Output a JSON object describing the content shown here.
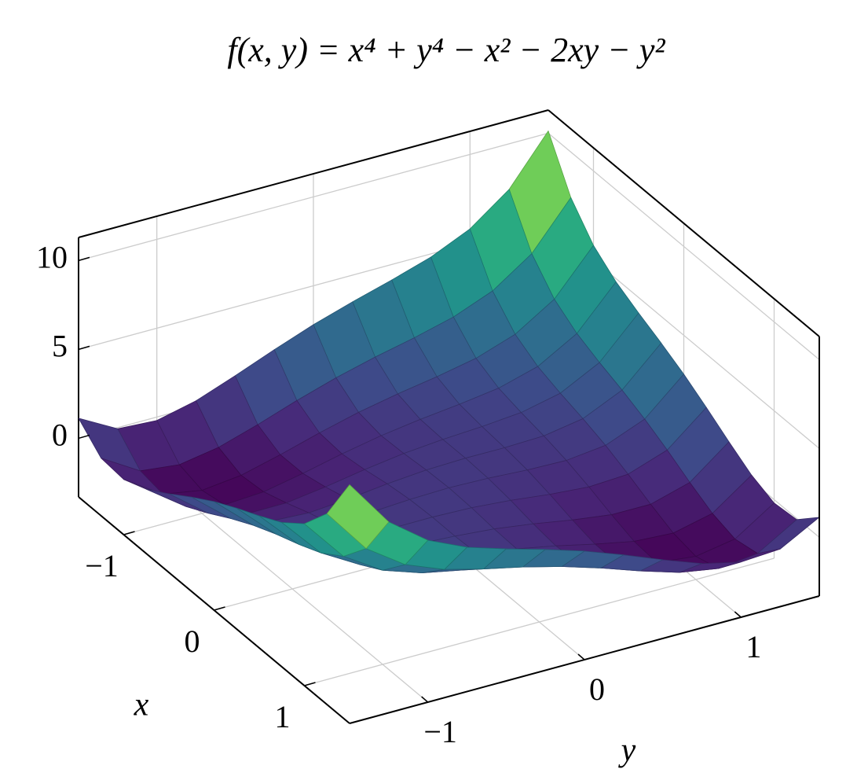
{
  "chart_data": {
    "type": "surface",
    "title": "f(x, y) = x⁴ + y⁴ − x² − 2xy − y²",
    "xlabel": "x",
    "ylabel": "y",
    "colormap": "viridis",
    "grid": true,
    "x": [
      -1.5,
      -1.25,
      -1,
      -0.75,
      -0.5,
      -0.25,
      0,
      0.25,
      0.5,
      0.75,
      1,
      1.25,
      1.5
    ],
    "y": [
      -1.5,
      -1.25,
      -1,
      -0.75,
      -0.5,
      -0.25,
      0,
      0.25,
      0.5,
      0.75,
      1,
      1.25,
      1.5
    ],
    "z": [
      [
        1.13,
        -0.06,
        -0.19,
        0.32,
        1.13,
        2.0,
        2.81,
        3.5,
        4.13,
        4.82,
        5.81,
        7.44,
        10.13
      ],
      [
        -0.06,
        -1.37,
        -1.62,
        -1.24,
        -0.56,
        0.2,
        0.88,
        1.45,
        1.94,
        2.51,
        3.38,
        4.88,
        7.44
      ],
      [
        -0.19,
        -1.62,
        -2,
        -1.75,
        -1.19,
        -0.56,
        0,
        0.44,
        0.81,
        1.25,
        2,
        3.38,
        5.81
      ],
      [
        0.32,
        -1.24,
        -1.75,
        -1.62,
        -1.18,
        -0.68,
        -0.25,
        0.07,
        0.32,
        0.63,
        1.25,
        2.51,
        4.82
      ],
      [
        1.13,
        -0.56,
        -1.19,
        -1.18,
        -0.88,
        -0.5,
        -0.19,
        0,
        0.13,
        0.32,
        0.81,
        1.94,
        4.13
      ],
      [
        2.0,
        0.2,
        -0.56,
        -0.68,
        -0.5,
        -0.24,
        -0.06,
        0.01,
        0,
        0.07,
        0.44,
        1.45,
        3.5
      ],
      [
        2.81,
        0.88,
        0,
        -0.25,
        -0.19,
        -0.06,
        0,
        -0.06,
        -0.19,
        -0.25,
        0,
        0.88,
        2.81
      ],
      [
        3.5,
        1.45,
        0.44,
        0.07,
        0,
        0.01,
        -0.06,
        -0.24,
        -0.5,
        -0.68,
        -0.56,
        0.2,
        2.0
      ],
      [
        4.13,
        1.94,
        0.81,
        0.32,
        0.13,
        0,
        -0.19,
        -0.5,
        -0.88,
        -1.18,
        -1.19,
        -0.56,
        1.13
      ],
      [
        4.82,
        2.51,
        1.25,
        0.63,
        0.32,
        0.07,
        -0.25,
        -0.68,
        -1.18,
        -1.62,
        -1.75,
        -1.24,
        0.32
      ],
      [
        5.81,
        3.38,
        2,
        1.25,
        0.81,
        0.44,
        0,
        -0.56,
        -1.19,
        -1.75,
        -2,
        -1.62,
        -0.19
      ],
      [
        7.44,
        4.88,
        3.38,
        2.51,
        1.94,
        1.45,
        0.88,
        0.2,
        -0.56,
        -1.24,
        -1.62,
        -1.37,
        -0.06
      ],
      [
        10.13,
        7.44,
        5.81,
        4.82,
        4.13,
        3.5,
        2.81,
        2.0,
        1.13,
        0.32,
        -0.19,
        -0.06,
        1.13
      ]
    ],
    "xlim": [
      -1.5,
      1.5
    ],
    "ylim": [
      -1.5,
      1.5
    ],
    "zlim": [
      -3.3,
      11.3
    ],
    "xticks": [
      {
        "value": -1,
        "label": "−1"
      },
      0,
      1
    ],
    "yticks": [
      {
        "value": -1,
        "label": "−1"
      },
      0,
      1
    ],
    "zticks": [
      0,
      5,
      10
    ]
  }
}
